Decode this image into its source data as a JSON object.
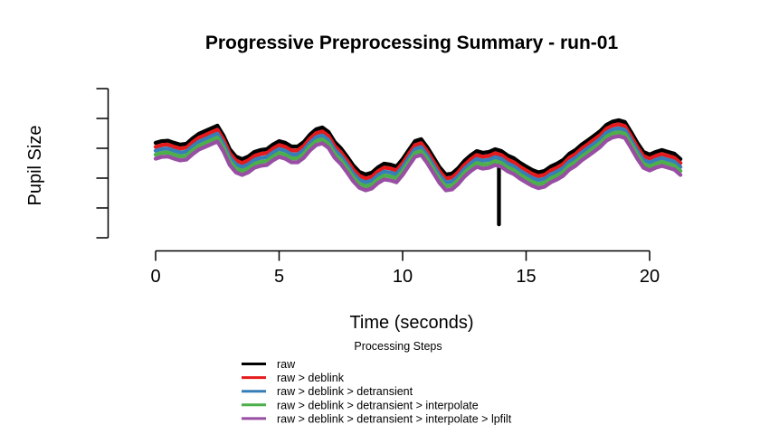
{
  "title": "Progressive Preprocessing Summary - run-01",
  "x_axis": {
    "label": "Time (seconds)",
    "tick_values": [
      0,
      5,
      10,
      15,
      20
    ],
    "tick_labels": [
      "0",
      "5",
      "10",
      "15",
      "20"
    ]
  },
  "y_axis": {
    "label": "Pupil Size",
    "tick_count": 6,
    "tick_labels": []
  },
  "legend": {
    "title": "Processing Steps",
    "entries": [
      {
        "label": "raw",
        "color": "#000000"
      },
      {
        "label": "raw > deblink",
        "color": "#E41A1C"
      },
      {
        "label": "raw > deblink > detransient",
        "color": "#377EB8"
      },
      {
        "label": "raw > deblink > detransient > interpolate",
        "color": "#4DAF4A"
      },
      {
        "label": "raw > deblink > detransient > interpolate > lpfilt",
        "color": "#984EA3"
      }
    ]
  },
  "chart_data": {
    "type": "line",
    "title": "Progressive Preprocessing Summary - run-01",
    "xlabel": "Time (seconds)",
    "ylabel": "Pupil Size",
    "xlim": [
      0,
      21.25
    ],
    "ylim": [
      0,
      10
    ],
    "grid": false,
    "legend_position": "bottom",
    "x": [
      0,
      0.25,
      0.5,
      0.75,
      1,
      1.25,
      1.5,
      1.75,
      2,
      2.25,
      2.5,
      2.75,
      3,
      3.25,
      3.5,
      3.75,
      4,
      4.25,
      4.5,
      4.75,
      5,
      5.25,
      5.5,
      5.75,
      6,
      6.25,
      6.5,
      6.75,
      7,
      7.25,
      7.5,
      7.75,
      8,
      8.25,
      8.5,
      8.75,
      9,
      9.25,
      9.5,
      9.75,
      10,
      10.25,
      10.5,
      10.75,
      11,
      11.25,
      11.5,
      11.75,
      12,
      12.25,
      12.5,
      12.75,
      13,
      13.25,
      13.5,
      13.75,
      14,
      14.25,
      14.5,
      14.75,
      15,
      15.25,
      15.5,
      15.75,
      16,
      16.25,
      16.5,
      16.75,
      17,
      17.25,
      17.5,
      17.75,
      18,
      18.25,
      18.5,
      18.75,
      19,
      19.25,
      19.5,
      19.75,
      20,
      20.25,
      20.5,
      20.75,
      21,
      21.25
    ],
    "base_values": [
      6.42,
      6.54,
      6.57,
      6.42,
      6.3,
      6.36,
      6.73,
      7.04,
      7.22,
      7.41,
      7.59,
      6.91,
      5.99,
      5.49,
      5.31,
      5.49,
      5.8,
      5.93,
      5.99,
      6.3,
      6.54,
      6.42,
      6.17,
      6.17,
      6.48,
      6.98,
      7.35,
      7.47,
      7.16,
      6.48,
      6.05,
      5.49,
      4.88,
      4.44,
      4.26,
      4.38,
      4.75,
      5.0,
      4.94,
      4.81,
      5.31,
      5.93,
      6.54,
      6.67,
      6.11,
      5.43,
      4.75,
      4.26,
      4.32,
      4.69,
      5.19,
      5.56,
      5.86,
      5.74,
      5.8,
      5.99,
      5.86,
      5.56,
      5.37,
      5.06,
      4.81,
      4.57,
      4.41,
      4.51,
      4.81,
      5.0,
      5.25,
      5.68,
      5.93,
      6.3,
      6.6,
      6.91,
      7.22,
      7.65,
      7.87,
      7.96,
      7.84,
      7.16,
      6.42,
      5.8,
      5.62,
      5.8,
      5.93,
      5.8,
      5.68,
      5.31
    ],
    "series": [
      {
        "name": "raw",
        "color": "#000000",
        "offset": 0
      },
      {
        "name": "raw > deblink",
        "color": "#E41A1C",
        "offset": -0.27
      },
      {
        "name": "raw > deblink > detransient",
        "color": "#377EB8",
        "offset": -0.54
      },
      {
        "name": "raw > deblink > detransient > interpolate",
        "color": "#4DAF4A",
        "offset": -0.81
      },
      {
        "name": "raw > deblink > detransient > interpolate > lpfilt",
        "color": "#984EA3",
        "offset": -1.08
      }
    ],
    "blink_artifact": {
      "series": "raw",
      "t": 13.9,
      "from_value": 5.9,
      "to_value": 0.86
    }
  }
}
